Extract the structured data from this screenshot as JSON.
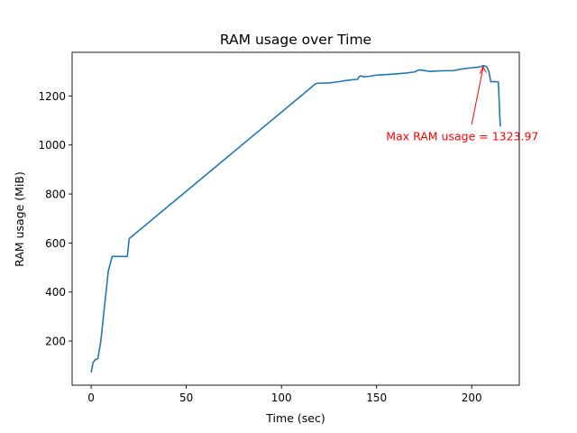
{
  "chart_data": {
    "type": "line",
    "title": "RAM usage over Time",
    "xlabel": "Time (sec)",
    "ylabel": "RAM usage (MiB)",
    "xlim": [
      -10,
      225
    ],
    "ylim": [
      20,
      1378
    ],
    "x_ticks": [
      0,
      50,
      100,
      150,
      200
    ],
    "y_ticks": [
      200,
      400,
      600,
      800,
      1000,
      1200
    ],
    "grid": false,
    "line_color": "#1f77b4",
    "series": [
      {
        "x": [
          0,
          1,
          2,
          3.5,
          5,
          7,
          9,
          11,
          13,
          15,
          17,
          19,
          20,
          118,
          119,
          125,
          130,
          133,
          136,
          140,
          141,
          142,
          143,
          146,
          150,
          155,
          160,
          165,
          170,
          172,
          174,
          178,
          182,
          186,
          190,
          195,
          200,
          204,
          205,
          206,
          207,
          208,
          209,
          210,
          211,
          212,
          213,
          214,
          215
        ],
        "y": [
          72,
          112,
          123,
          128,
          195,
          340,
          485,
          545,
          545,
          545,
          545,
          545,
          618,
          1250,
          1252,
          1253,
          1258,
          1262,
          1265,
          1268,
          1280,
          1282,
          1278,
          1280,
          1285,
          1287,
          1290,
          1293,
          1298,
          1306,
          1305,
          1300,
          1302,
          1303,
          1303,
          1310,
          1315,
          1318,
          1320,
          1323.97,
          1322,
          1318,
          1300,
          1258,
          1258,
          1258,
          1258,
          1257,
          1075
        ]
      }
    ],
    "annotation": {
      "text": "Max RAM usage = 1323.97",
      "color": "#ff0000",
      "point": [
        206,
        1323.97
      ],
      "text_at": [
        155,
        1020
      ]
    }
  }
}
